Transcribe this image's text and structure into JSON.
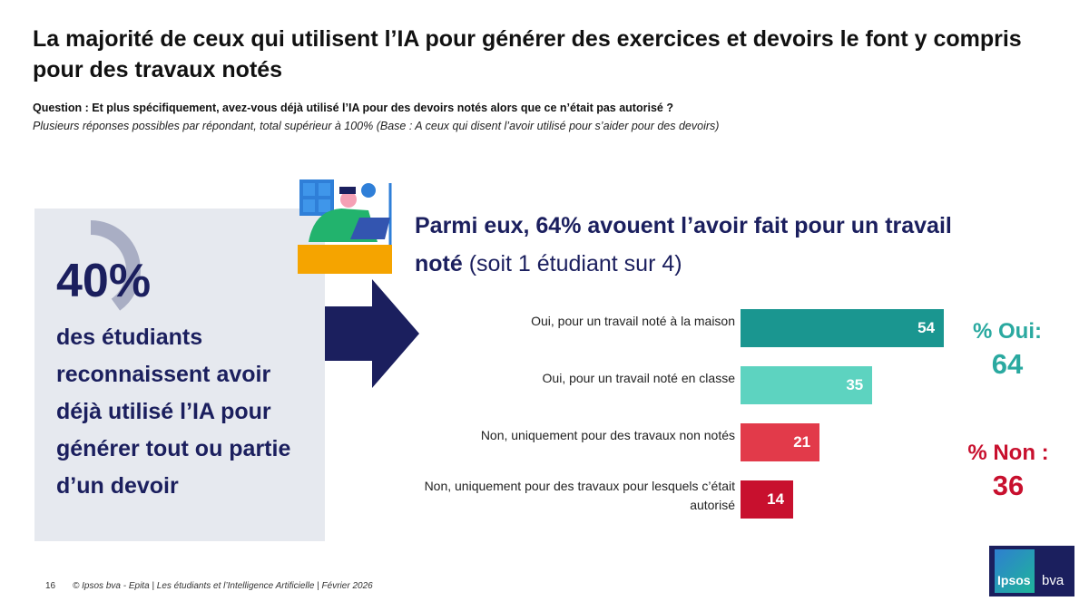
{
  "title": "La majorité de ceux qui utilisent l’IA pour générer des exercices et devoirs le font y compris pour des travaux notés",
  "question": "Question : Et plus spécifiquement, avez-vous déjà utilisé l’IA pour des devoirs notés alors que ce n’était pas autorisé ?",
  "note": "Plusieurs réponses possibles par répondant, total supérieur à 100% (Base : A ceux qui disent l’avoir utilisé pour s’aider pour des devoirs)",
  "panel": {
    "value": "40%",
    "text": "des étudiants reconnaissent avoir déjà utilisé l’IA pour générer tout ou partie d’un devoir",
    "fraction": 0.4
  },
  "headline": {
    "bold": "Parmi eux, 64% avouent l’avoir fait pour un travail noté",
    "rest": " (soit 1 étudiant sur 4)"
  },
  "kpis": {
    "oui_label": "% Oui:",
    "oui_value": "64",
    "non_label": "% Non :",
    "non_value": "36"
  },
  "footer": {
    "page": "16",
    "text": "© Ipsos bva - Epita | Les étudiants et l’Intelligence Artificielle | Février 2026"
  },
  "logo": {
    "ipsos": "Ipsos",
    "bva": "bva"
  },
  "colors": {
    "navy": "#1b1f5e",
    "teal_dark": "#1a9690",
    "teal_light": "#5dd3c0",
    "red": "#e23a4a",
    "red_dark": "#c8102e"
  },
  "chart_data": {
    "type": "bar",
    "orientation": "horizontal",
    "categories": [
      "Oui, pour un travail noté à la maison",
      "Oui, pour un travail noté en classe",
      "Non, uniquement pour des travaux non notés",
      "Non, uniquement pour des travaux pour lesquels c’était autorisé"
    ],
    "values": [
      54,
      35,
      21,
      14
    ],
    "colors": [
      "#1a9690",
      "#5dd3c0",
      "#e23a4a",
      "#c8102e"
    ],
    "xlim": [
      0,
      100
    ],
    "unit": "%"
  }
}
